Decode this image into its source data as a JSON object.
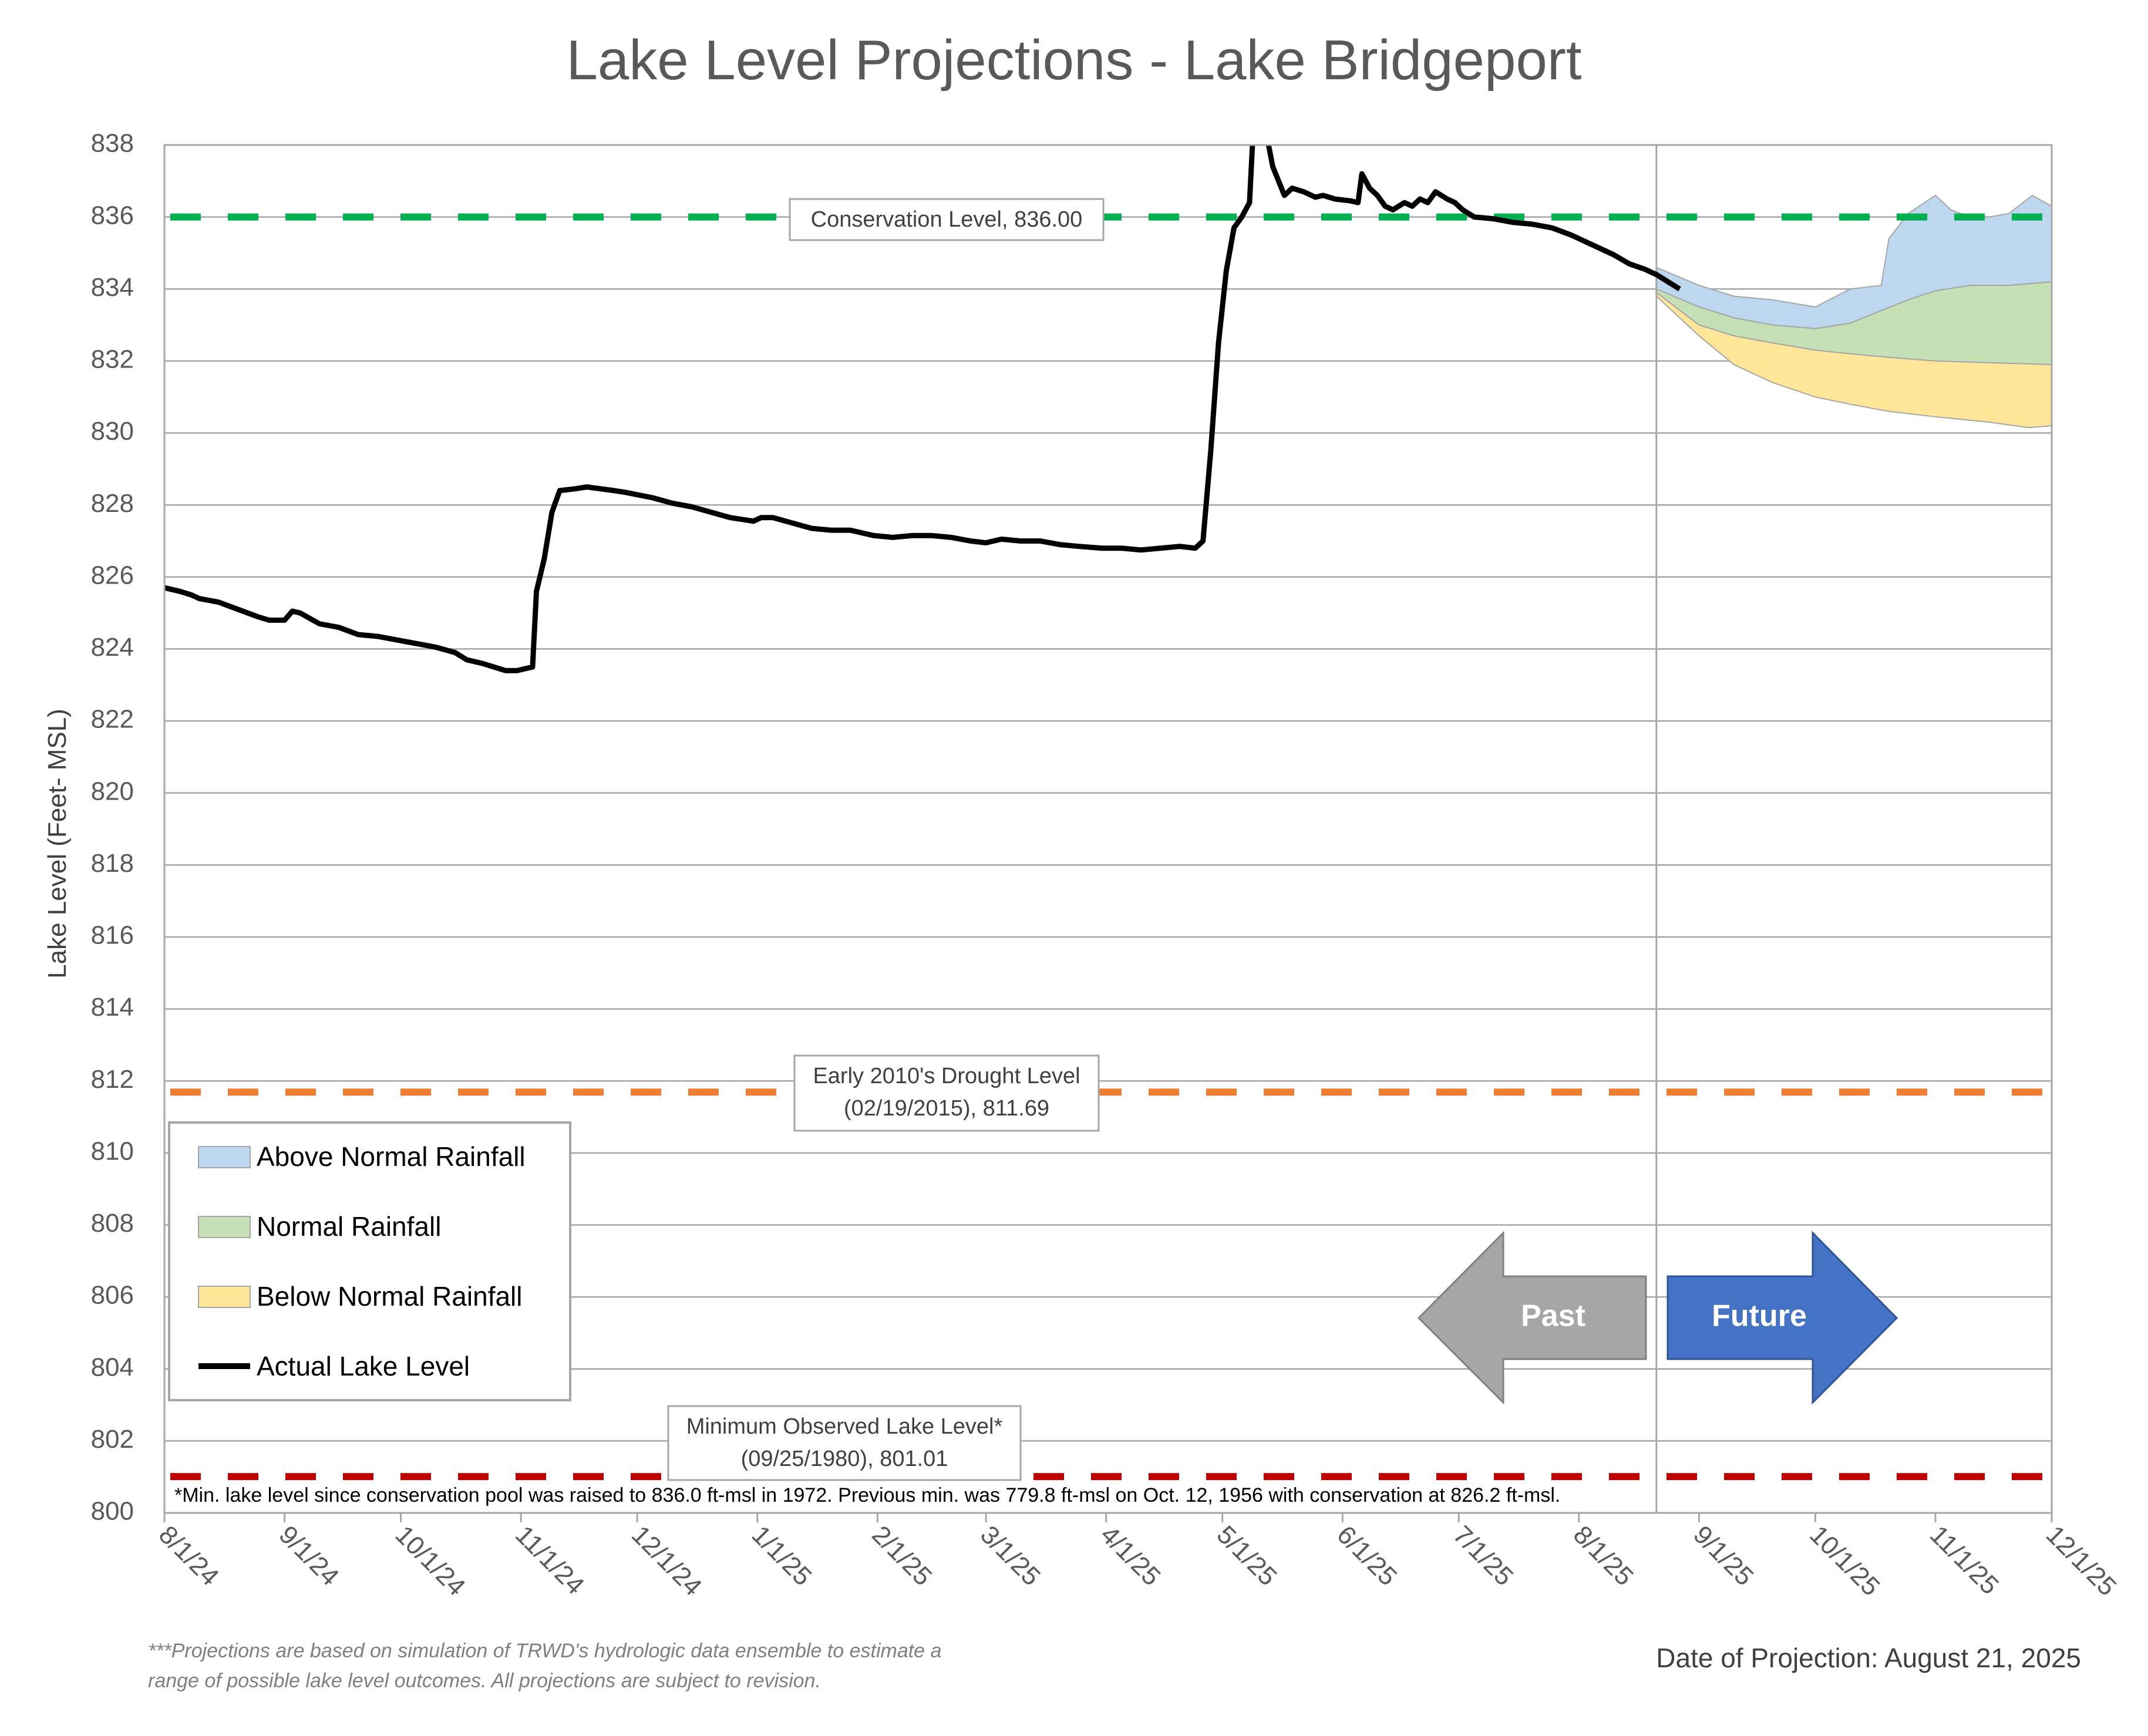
{
  "chart_data": {
    "type": "line",
    "title": "Lake Level Projections - Lake Bridgeport",
    "ylabel": "Lake Level (Feet- MSL)",
    "xlabel": "",
    "ylim": [
      800,
      838
    ],
    "y_ticks": [
      800,
      802,
      804,
      806,
      808,
      810,
      812,
      814,
      816,
      818,
      820,
      822,
      824,
      826,
      828,
      830,
      832,
      834,
      836,
      838
    ],
    "x_ticks": [
      "8/1/24",
      "9/1/24",
      "10/1/24",
      "11/1/24",
      "12/1/24",
      "1/1/25",
      "2/1/25",
      "3/1/25",
      "4/1/25",
      "5/1/25",
      "6/1/25",
      "7/1/25",
      "8/1/25",
      "9/1/25",
      "10/1/25",
      "11/1/25",
      "12/1/25"
    ],
    "x_range": [
      "2024-08-01",
      "2025-12-01"
    ],
    "grid": "horizontal",
    "legend_position": "bottom-left",
    "legend": [
      {
        "label": "Above Normal Rainfall",
        "kind": "area",
        "color": "#BDD7EE"
      },
      {
        "label": "Normal Rainfall",
        "kind": "area",
        "color": "#C5E0B4"
      },
      {
        "label": "Below Normal Rainfall",
        "kind": "area",
        "color": "#FFE699"
      },
      {
        "label": "Actual Lake Level",
        "kind": "line",
        "color": "#000000"
      }
    ],
    "series": [
      {
        "name": "Actual Lake Level",
        "type": "line",
        "color": "#000000",
        "points": [
          [
            "2024-08-01",
            825.7
          ],
          [
            "2024-08-05",
            825.6
          ],
          [
            "2024-08-08",
            825.5
          ],
          [
            "2024-08-10",
            825.4
          ],
          [
            "2024-08-15",
            825.3
          ],
          [
            "2024-08-20",
            825.1
          ],
          [
            "2024-08-25",
            824.9
          ],
          [
            "2024-08-28",
            824.8
          ],
          [
            "2024-09-01",
            824.8
          ],
          [
            "2024-09-03",
            825.05
          ],
          [
            "2024-09-05",
            825.0
          ],
          [
            "2024-09-10",
            824.7
          ],
          [
            "2024-09-15",
            824.6
          ],
          [
            "2024-09-20",
            824.4
          ],
          [
            "2024-09-25",
            824.35
          ],
          [
            "2024-09-30",
            824.25
          ],
          [
            "2024-10-05",
            824.15
          ],
          [
            "2024-10-10",
            824.05
          ],
          [
            "2024-10-15",
            823.9
          ],
          [
            "2024-10-18",
            823.7
          ],
          [
            "2024-10-22",
            823.6
          ],
          [
            "2024-10-25",
            823.5
          ],
          [
            "2024-10-28",
            823.4
          ],
          [
            "2024-10-31",
            823.4
          ],
          [
            "2024-11-02",
            823.45
          ],
          [
            "2024-11-04",
            823.5
          ],
          [
            "2024-11-05",
            825.6
          ],
          [
            "2024-11-07",
            826.5
          ],
          [
            "2024-11-09",
            827.8
          ],
          [
            "2024-11-11",
            828.4
          ],
          [
            "2024-11-15",
            828.45
          ],
          [
            "2024-11-18",
            828.5
          ],
          [
            "2024-11-25",
            828.4
          ],
          [
            "2024-11-28",
            828.35
          ],
          [
            "2024-12-05",
            828.2
          ],
          [
            "2024-12-10",
            828.05
          ],
          [
            "2024-12-15",
            827.95
          ],
          [
            "2024-12-20",
            827.8
          ],
          [
            "2024-12-25",
            827.65
          ],
          [
            "2024-12-31",
            827.55
          ],
          [
            "2025-01-02",
            827.65
          ],
          [
            "2025-01-05",
            827.65
          ],
          [
            "2025-01-10",
            827.5
          ],
          [
            "2025-01-15",
            827.35
          ],
          [
            "2025-01-20",
            827.3
          ],
          [
            "2025-01-25",
            827.3
          ],
          [
            "2025-01-31",
            827.15
          ],
          [
            "2025-02-05",
            827.1
          ],
          [
            "2025-02-10",
            827.15
          ],
          [
            "2025-02-15",
            827.15
          ],
          [
            "2025-02-20",
            827.1
          ],
          [
            "2025-02-25",
            827.0
          ],
          [
            "2025-03-01",
            826.95
          ],
          [
            "2025-03-05",
            827.05
          ],
          [
            "2025-03-10",
            827.0
          ],
          [
            "2025-03-15",
            827.0
          ],
          [
            "2025-03-20",
            826.9
          ],
          [
            "2025-03-25",
            826.85
          ],
          [
            "2025-03-31",
            826.8
          ],
          [
            "2025-04-05",
            826.8
          ],
          [
            "2025-04-10",
            826.75
          ],
          [
            "2025-04-15",
            826.8
          ],
          [
            "2025-04-20",
            826.85
          ],
          [
            "2025-04-24",
            826.8
          ],
          [
            "2025-04-26",
            827.0
          ],
          [
            "2025-04-28",
            829.5
          ],
          [
            "2025-04-30",
            832.5
          ],
          [
            "2025-05-02",
            834.5
          ],
          [
            "2025-05-04",
            835.7
          ],
          [
            "2025-05-06",
            836.0
          ],
          [
            "2025-05-08",
            836.4
          ],
          [
            "2025-05-09",
            838.5
          ],
          [
            "2025-05-12",
            838.5
          ],
          [
            "2025-05-14",
            837.4
          ],
          [
            "2025-05-17",
            836.6
          ],
          [
            "2025-05-19",
            836.8
          ],
          [
            "2025-05-22",
            836.7
          ],
          [
            "2025-05-25",
            836.55
          ],
          [
            "2025-05-27",
            836.6
          ],
          [
            "2025-05-30",
            836.5
          ],
          [
            "2025-06-03",
            836.45
          ],
          [
            "2025-06-05",
            836.4
          ],
          [
            "2025-06-06",
            837.2
          ],
          [
            "2025-06-08",
            836.8
          ],
          [
            "2025-06-10",
            836.6
          ],
          [
            "2025-06-12",
            836.3
          ],
          [
            "2025-06-14",
            836.2
          ],
          [
            "2025-06-17",
            836.4
          ],
          [
            "2025-06-19",
            836.3
          ],
          [
            "2025-06-21",
            836.5
          ],
          [
            "2025-06-23",
            836.4
          ],
          [
            "2025-06-25",
            836.7
          ],
          [
            "2025-06-28",
            836.5
          ],
          [
            "2025-06-30",
            836.4
          ],
          [
            "2025-07-02",
            836.2
          ],
          [
            "2025-07-05",
            836.0
          ],
          [
            "2025-07-10",
            835.95
          ],
          [
            "2025-07-15",
            835.85
          ],
          [
            "2025-07-20",
            835.8
          ],
          [
            "2025-07-25",
            835.7
          ],
          [
            "2025-07-30",
            835.5
          ],
          [
            "2025-08-03",
            835.3
          ],
          [
            "2025-08-06",
            835.15
          ],
          [
            "2025-08-10",
            834.95
          ],
          [
            "2025-08-14",
            834.7
          ],
          [
            "2025-08-18",
            834.55
          ],
          [
            "2025-08-21",
            834.4
          ],
          [
            "2025-08-27",
            834.0
          ]
        ]
      },
      {
        "name": "Above Normal Rainfall",
        "type": "area",
        "color": "#BDD7EE",
        "upper": [
          [
            "2025-08-21",
            834.6
          ],
          [
            "2025-09-01",
            834.1
          ],
          [
            "2025-09-10",
            833.8
          ],
          [
            "2025-09-20",
            833.7
          ],
          [
            "2025-10-01",
            833.5
          ],
          [
            "2025-10-10",
            834.0
          ],
          [
            "2025-10-18",
            834.1
          ],
          [
            "2025-10-20",
            835.4
          ],
          [
            "2025-10-25",
            836.1
          ],
          [
            "2025-11-01",
            836.6
          ],
          [
            "2025-11-05",
            836.2
          ],
          [
            "2025-11-10",
            836.0
          ],
          [
            "2025-11-15",
            836.0
          ],
          [
            "2025-11-20",
            836.1
          ],
          [
            "2025-11-26",
            836.6
          ],
          [
            "2025-12-01",
            836.3
          ]
        ],
        "lower": [
          [
            "2025-08-21",
            834.0
          ],
          [
            "2025-09-01",
            833.5
          ],
          [
            "2025-09-10",
            833.2
          ],
          [
            "2025-09-20",
            833.0
          ],
          [
            "2025-10-01",
            832.9
          ],
          [
            "2025-10-10",
            833.05
          ],
          [
            "2025-10-18",
            833.4
          ],
          [
            "2025-10-25",
            833.7
          ],
          [
            "2025-11-01",
            833.95
          ],
          [
            "2025-11-10",
            834.1
          ],
          [
            "2025-11-20",
            834.1
          ],
          [
            "2025-12-01",
            834.2
          ]
        ]
      },
      {
        "name": "Normal Rainfall",
        "type": "area",
        "color": "#C5E0B4",
        "upper": [
          [
            "2025-08-21",
            834.0
          ],
          [
            "2025-09-01",
            833.5
          ],
          [
            "2025-09-10",
            833.2
          ],
          [
            "2025-09-20",
            833.0
          ],
          [
            "2025-10-01",
            832.9
          ],
          [
            "2025-10-10",
            833.05
          ],
          [
            "2025-10-18",
            833.4
          ],
          [
            "2025-10-25",
            833.7
          ],
          [
            "2025-11-01",
            833.95
          ],
          [
            "2025-11-10",
            834.1
          ],
          [
            "2025-11-20",
            834.1
          ],
          [
            "2025-12-01",
            834.2
          ]
        ],
        "lower": [
          [
            "2025-08-21",
            833.9
          ],
          [
            "2025-09-01",
            833.0
          ],
          [
            "2025-09-10",
            832.7
          ],
          [
            "2025-09-20",
            832.5
          ],
          [
            "2025-10-01",
            832.3
          ],
          [
            "2025-10-10",
            832.2
          ],
          [
            "2025-10-20",
            832.1
          ],
          [
            "2025-11-01",
            832.0
          ],
          [
            "2025-11-15",
            831.95
          ],
          [
            "2025-12-01",
            831.9
          ]
        ]
      },
      {
        "name": "Below Normal Rainfall",
        "type": "area",
        "color": "#FFE699",
        "upper": [
          [
            "2025-08-21",
            833.9
          ],
          [
            "2025-09-01",
            833.0
          ],
          [
            "2025-09-10",
            832.7
          ],
          [
            "2025-09-20",
            832.5
          ],
          [
            "2025-10-01",
            832.3
          ],
          [
            "2025-10-10",
            832.2
          ],
          [
            "2025-10-20",
            832.1
          ],
          [
            "2025-11-01",
            832.0
          ],
          [
            "2025-11-15",
            831.95
          ],
          [
            "2025-12-01",
            831.9
          ]
        ],
        "lower": [
          [
            "2025-08-21",
            833.8
          ],
          [
            "2025-09-01",
            832.7
          ],
          [
            "2025-09-10",
            831.9
          ],
          [
            "2025-09-20",
            831.4
          ],
          [
            "2025-10-01",
            831.0
          ],
          [
            "2025-10-10",
            830.8
          ],
          [
            "2025-10-20",
            830.6
          ],
          [
            "2025-11-01",
            830.45
          ],
          [
            "2025-11-15",
            830.3
          ],
          [
            "2025-11-25",
            830.15
          ],
          [
            "2025-12-01",
            830.2
          ]
        ]
      }
    ],
    "reference_lines": [
      {
        "value": 836.0,
        "color": "#00B050",
        "label_lines": [
          "Conservation Level, 836.00"
        ]
      },
      {
        "value": 811.69,
        "color": "#ED7D31",
        "label_lines": [
          "Early 2010's Drought Level",
          "(02/19/2015), 811.69"
        ]
      },
      {
        "value": 801.01,
        "color": "#C00000",
        "label_lines": [
          "Minimum Observed Lake Level*",
          "(09/25/1980), 801.01"
        ]
      }
    ],
    "projection_start": "2025-08-21",
    "arrows": {
      "past": "Past",
      "future": "Future",
      "past_color": "#A6A6A6",
      "future_color": "#4472C4"
    },
    "min_level_note": "*Min. lake level since conservation pool was raised to 836.0 ft-msl in 1972.  Previous min. was 779.8 ft-msl on Oct. 12, 1956 with conservation at 826.2 ft-msl.",
    "footnote_lines": [
      "***Projections are based on simulation of TRWD's hydrologic data ensemble to estimate a",
      "range of possible lake level outcomes.  All projections are subject to revision."
    ],
    "projection_date": "Date of Projection: August 21, 2025"
  }
}
